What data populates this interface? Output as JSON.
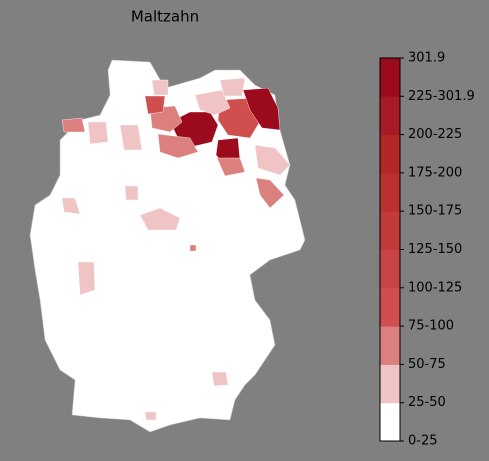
{
  "title": "Maltzahn",
  "colorbar": {
    "ticks": [
      "0-25",
      "25-50",
      "50-75",
      "75-100",
      "100-125",
      "125-150",
      "150-175",
      "175-200",
      "200-225",
      "225-301.9",
      "301.9"
    ],
    "colors": [
      "#ffffff",
      "#f0c4c4",
      "#db7f7f",
      "#cf4e4e",
      "#c94444",
      "#c23a3a",
      "#bb3131",
      "#b32727",
      "#a81b26",
      "#9c0a1e"
    ]
  }
}
